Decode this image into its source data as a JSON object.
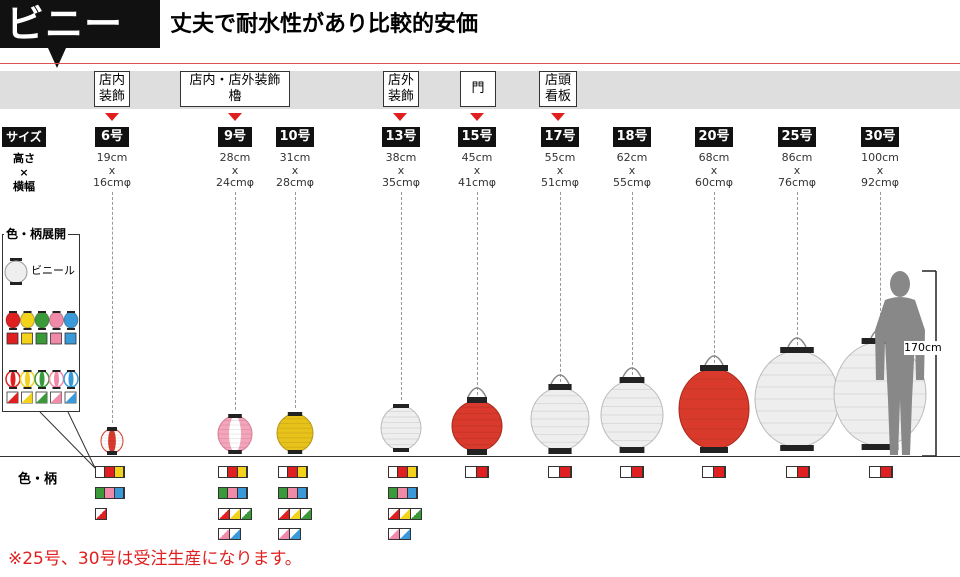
{
  "header": {
    "category": "ビニール",
    "headline": "丈夫で耐水性があり比較的安価"
  },
  "uses": [
    {
      "label": "店内\n装飾"
    },
    {
      "label": "店内・店外装飾\n櫓"
    },
    {
      "label": "店外\n装飾"
    },
    {
      "label": "門"
    },
    {
      "label": "店頭\n看板"
    }
  ],
  "table": {
    "size_header": "サイズ",
    "dim_header_1": "高さ",
    "dim_header_x": "×",
    "dim_header_2": "横幅",
    "colors_header": "色・柄"
  },
  "sizes": [
    {
      "name": "6号",
      "height": "19cm",
      "x": "x",
      "width": "16cmφ"
    },
    {
      "name": "9号",
      "height": "28cm",
      "x": "x",
      "width": "24cmφ"
    },
    {
      "name": "10号",
      "height": "31cm",
      "x": "x",
      "width": "28cmφ"
    },
    {
      "name": "13号",
      "height": "38cm",
      "x": "x",
      "width": "35cmφ"
    },
    {
      "name": "15号",
      "height": "45cm",
      "x": "x",
      "width": "41cmφ"
    },
    {
      "name": "17号",
      "height": "55cm",
      "x": "x",
      "width": "51cmφ"
    },
    {
      "name": "18号",
      "height": "62cm",
      "x": "x",
      "width": "55cmφ"
    },
    {
      "name": "20号",
      "height": "68cm",
      "x": "x",
      "width": "60cmφ"
    },
    {
      "name": "25号",
      "height": "86cm",
      "x": "x",
      "width": "76cmφ"
    },
    {
      "name": "30号",
      "height": "100cm",
      "x": "x",
      "width": "92cmφ"
    }
  ],
  "pattern_panel": {
    "title": "色・柄展開",
    "vinyl_label": "ビニール"
  },
  "human_height": "170cm",
  "footnote": "※25号、30号は受注生産になります。",
  "colors": {
    "red": "#e02020",
    "yellow": "#f2d21b",
    "green": "#3a9a3a",
    "pink": "#f08aa8",
    "blue": "#3a9ad9",
    "white": "#ffffff"
  }
}
